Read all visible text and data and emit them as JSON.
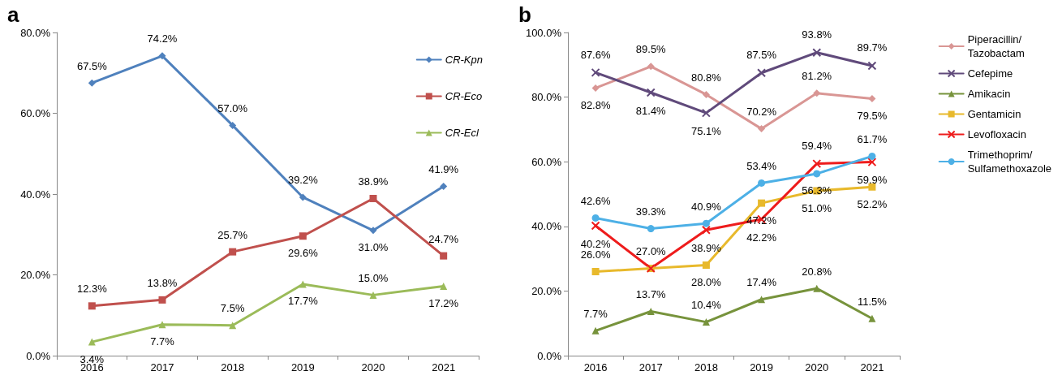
{
  "chart_data": [
    {
      "type": "line",
      "title": "a",
      "categories": [
        "2016",
        "2017",
        "2018",
        "2019",
        "2020",
        "2021"
      ],
      "series": [
        {
          "name": "CR-Kpn",
          "color": "#4f81bd",
          "marker": "diamond",
          "values": [
            67.5,
            74.2,
            57.0,
            39.2,
            31.0,
            41.9
          ],
          "value_labels": [
            "67.5%",
            "74.2%",
            "57.0%",
            "39.2%",
            "31.0%",
            "41.9%"
          ]
        },
        {
          "name": "CR-Eco",
          "color": "#c0504d",
          "marker": "square",
          "values": [
            12.3,
            13.8,
            25.7,
            29.6,
            38.9,
            24.7
          ],
          "value_labels": [
            "12.3%",
            "13.8%",
            "25.7%",
            "29.6%",
            "38.9%",
            "24.7%"
          ]
        },
        {
          "name": "CR-Ecl",
          "color": "#9bbb59",
          "marker": "triangle",
          "values": [
            3.4,
            7.7,
            7.5,
            17.7,
            15.0,
            17.2
          ],
          "value_labels": [
            "3.4%",
            "7.7%",
            "7.5%",
            "17.7%",
            "15.0%",
            "17.2%"
          ]
        }
      ],
      "ylim": [
        0,
        80
      ],
      "yticks": [
        {
          "value": 0,
          "label": "0.0%"
        },
        {
          "value": 20,
          "label": "20.0%"
        },
        {
          "value": 40,
          "label": "40.0%"
        },
        {
          "value": 60,
          "label": "60.0%"
        },
        {
          "value": 80,
          "label": "80.0%"
        }
      ],
      "grid": false,
      "legend": "top right"
    },
    {
      "type": "line",
      "title": "b",
      "categories": [
        "2016",
        "2017",
        "2018",
        "2019",
        "2020",
        "2021"
      ],
      "series": [
        {
          "name": "Piperacillin/Tazobactam",
          "color": "#d99694",
          "marker": "diamond",
          "values": [
            82.8,
            89.5,
            80.8,
            70.2,
            81.2,
            79.5
          ],
          "value_labels": [
            "82.8%",
            "89.5%",
            "80.8%",
            "70.2%",
            "81.2%",
            "79.5%"
          ]
        },
        {
          "name": "Cefepime",
          "color": "#604a7b",
          "marker": "cross",
          "values": [
            87.6,
            81.4,
            75.1,
            87.5,
            93.8,
            89.7
          ],
          "value_labels": [
            "87.6%",
            "81.4%",
            "75.1%",
            "87.5%",
            "93.8%",
            "89.7%"
          ]
        },
        {
          "name": "Amikacin",
          "color": "#77933c",
          "marker": "triangle",
          "values": [
            7.7,
            13.7,
            10.4,
            17.4,
            20.8,
            11.5
          ],
          "value_labels": [
            "7.7%",
            "13.7%",
            "10.4%",
            "17.4%",
            "20.8%",
            "11.5%"
          ]
        },
        {
          "name": "Gentamicin",
          "color": "#e8b92c",
          "marker": "square",
          "values": [
            26.0,
            27.0,
            28.0,
            47.2,
            51.0,
            52.2
          ],
          "value_labels": [
            "26.0%",
            "27.0%",
            "28.0%",
            "47.2%",
            "51.0%",
            "52.2%"
          ]
        },
        {
          "name": "Levofloxacin",
          "color": "#ee1c1c",
          "marker": "cross",
          "values": [
            40.2,
            27.0,
            38.9,
            42.2,
            59.4,
            59.9
          ],
          "value_labels": [
            "40.2%",
            null,
            "38.9%",
            "42.2%",
            "59.4%",
            "59.9%"
          ]
        },
        {
          "name": "Trimethoprim/Sulfamethoxazole",
          "color": "#4db0e6",
          "marker": "circle",
          "values": [
            42.6,
            39.3,
            40.9,
            53.4,
            56.3,
            61.7
          ],
          "value_labels": [
            "42.6%",
            "39.3%",
            "40.9%",
            "53.4%",
            "56.3%",
            "61.7%"
          ]
        }
      ],
      "ylim": [
        0,
        100
      ],
      "yticks": [
        {
          "value": 0,
          "label": "0.0%"
        },
        {
          "value": 20,
          "label": "20.0%"
        },
        {
          "value": 40,
          "label": "40.0%"
        },
        {
          "value": 60,
          "label": "60.0%"
        },
        {
          "value": 80,
          "label": "80.0%"
        },
        {
          "value": 100,
          "label": "100.0%"
        }
      ],
      "grid": false,
      "legend": "right"
    }
  ]
}
